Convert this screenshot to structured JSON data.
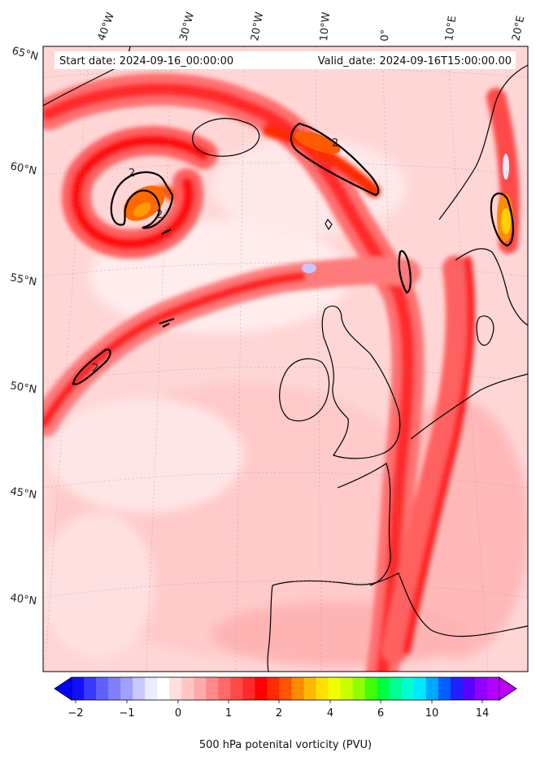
{
  "map": {
    "start_date": "Start date: 2024-09-16_00:00:00",
    "valid_date": "Valid_date: 2024-09-16T15:00:00.00",
    "lon_labels": [
      "40°W",
      "30°W",
      "20°W",
      "10°W",
      "0°",
      "10°E",
      "20°E"
    ],
    "lat_labels": [
      "65°N",
      "60°N",
      "55°N",
      "50°N",
      "45°N",
      "40°N"
    ],
    "contour_label": "2",
    "projection_extent": {
      "lon": [
        -45,
        22
      ],
      "lat": [
        37,
        66
      ]
    }
  },
  "colorbar": {
    "title": "500 hPa potenital vorticity (PVU)",
    "ticks": [
      "−2",
      "−1",
      "0",
      "1",
      "2",
      "4",
      "6",
      "10",
      "14"
    ],
    "extend": "both",
    "colors": [
      "#1010ff",
      "#3a3aff",
      "#6060ff",
      "#8080ff",
      "#a0a0ff",
      "#c8c8ff",
      "#ececff",
      "#ffffff",
      "#ffe0e0",
      "#ffc6c6",
      "#ffaaaa",
      "#ff8a8a",
      "#ff6a6a",
      "#ff4a4a",
      "#ff2a2a",
      "#ff0000",
      "#ff2a00",
      "#ff5500",
      "#ff8a00",
      "#ffb800",
      "#ffe000",
      "#f0ff00",
      "#c8ff00",
      "#90ff00",
      "#40ff00",
      "#00ff40",
      "#00ff90",
      "#00ffd0",
      "#00e8ff",
      "#00a8ff",
      "#0060ff",
      "#2020ff",
      "#5a00ff",
      "#9000ff",
      "#b400ff"
    ]
  }
}
